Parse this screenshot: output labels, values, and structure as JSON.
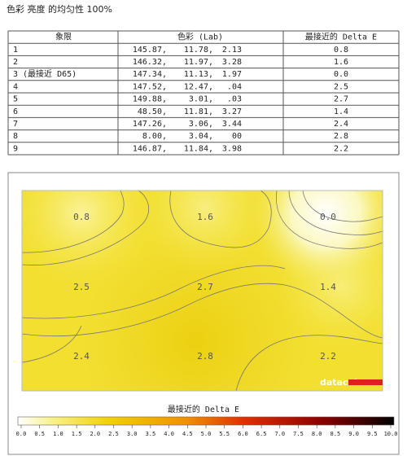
{
  "title": "色彩 亮度 的均匀性 100%",
  "table": {
    "header": [
      "象限",
      "色彩 (Lab)",
      "最接近的 Delta E"
    ],
    "rows": [
      {
        "region": "1",
        "lab": [
          "145.87,",
          "11.78,",
          "2.13"
        ],
        "delta_e": "0.8"
      },
      {
        "region": "2",
        "lab": [
          "146.32,",
          "11.97,",
          "3.28"
        ],
        "delta_e": "1.6"
      },
      {
        "region": "3 (最接近 D65)",
        "lab": [
          "147.34,",
          "11.13,",
          "1.97"
        ],
        "delta_e": "0.0"
      },
      {
        "region": "4",
        "lab": [
          "147.52,",
          "12.47,",
          ".04"
        ],
        "delta_e": "2.5"
      },
      {
        "region": "5",
        "lab": [
          "149.88,",
          "3.01,",
          ".03"
        ],
        "delta_e": "2.7"
      },
      {
        "region": "6",
        "lab": [
          "48.50,",
          "11.81,",
          "3.27"
        ],
        "delta_e": "1.4"
      },
      {
        "region": "7",
        "lab": [
          "147.26,",
          "3.06,",
          "3.44"
        ],
        "delta_e": "2.4"
      },
      {
        "region": "8",
        "lab": [
          "8.00,",
          "3.04,",
          "00"
        ],
        "delta_e": "2.8"
      },
      {
        "region": "9",
        "lab": [
          "146.87,",
          "11.84,",
          "3.98"
        ],
        "delta_e": "2.2"
      }
    ]
  },
  "map": {
    "labels": [
      [
        "0.8",
        "1.6",
        "0.0"
      ],
      [
        "2.5",
        "2.7",
        "1.4"
      ],
      [
        "2.4",
        "2.8",
        "2.2"
      ]
    ],
    "logo": "datacolor",
    "colorbar_title": "最接近的 Delta E",
    "colorbar_ticks": [
      "0.0",
      "0.5",
      "1.0",
      "1.5",
      "2.0",
      "2.5",
      "3.0",
      "3.5",
      "4.0",
      "4.5",
      "5.0",
      "5.5",
      "6.0",
      "6.5",
      "7.0",
      "7.5",
      "8.0",
      "8.5",
      "9.0",
      "9.5",
      "10.0"
    ]
  }
}
